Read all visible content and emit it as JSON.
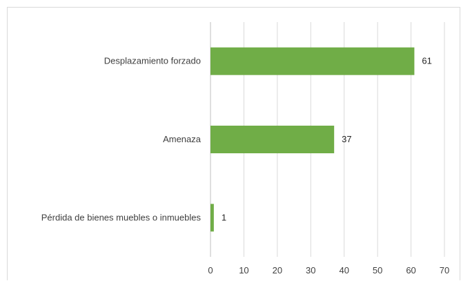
{
  "chart_data": {
    "type": "bar",
    "orientation": "horizontal",
    "categories": [
      "Desplazamiento forzado",
      "Amenaza",
      "Pérdida de bienes muebles o inmuebles"
    ],
    "values": [
      61,
      37,
      1
    ],
    "data_labels": [
      "61",
      "37",
      "1"
    ],
    "xlim": [
      0,
      70
    ],
    "x_ticks": [
      0,
      10,
      20,
      30,
      40,
      50,
      60,
      70
    ],
    "x_tick_labels": [
      "0",
      "10",
      "20",
      "30",
      "40",
      "50",
      "60",
      "70"
    ],
    "bar_color": "#70ad47",
    "grid": true,
    "legend": "none"
  }
}
